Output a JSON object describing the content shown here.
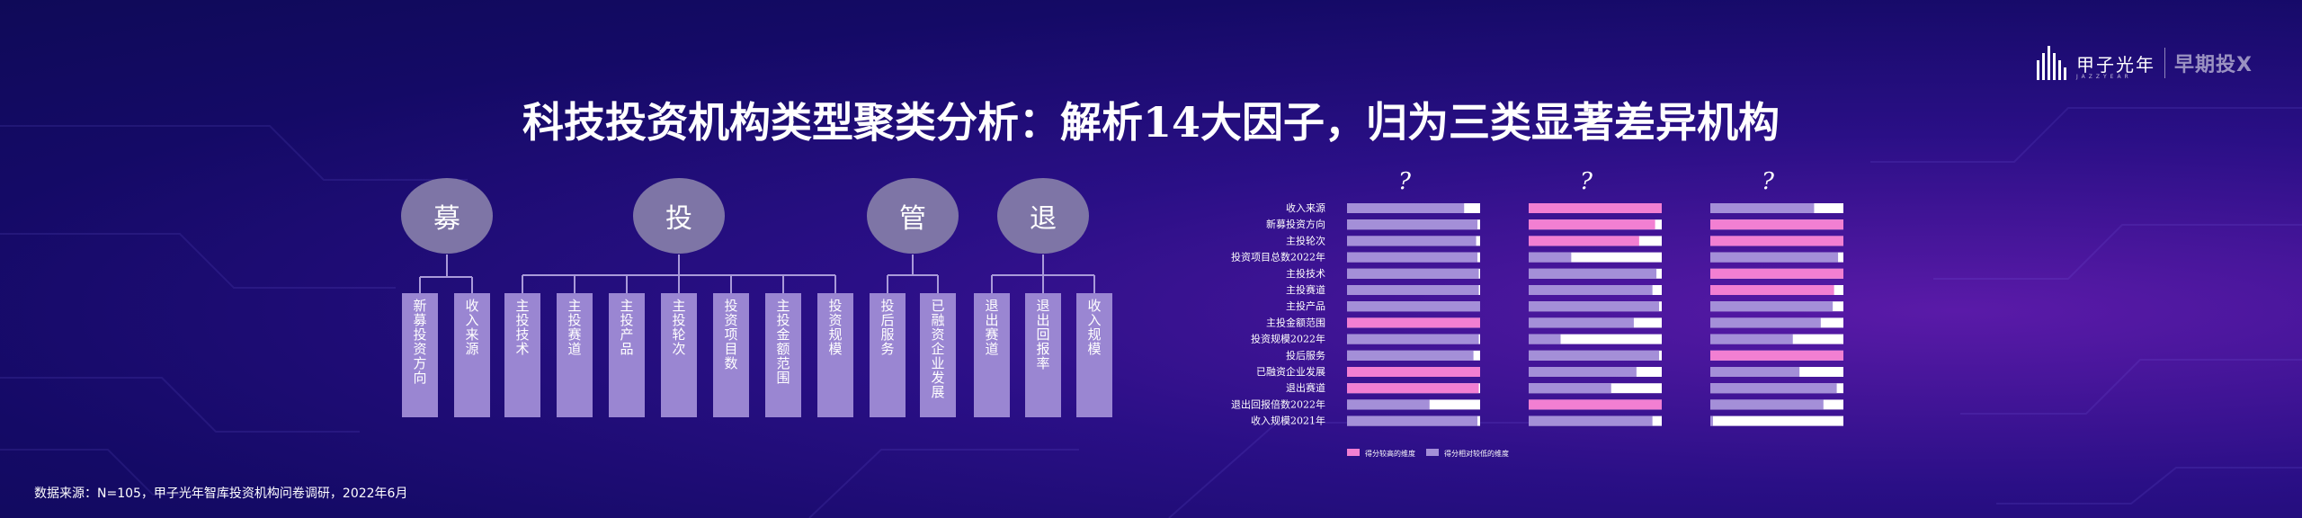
{
  "title": "科技投资机构类型聚类分析：解析14大因子，归为三类显著差异机构",
  "logo": {
    "brand": "甲子光年",
    "sub": "JAZZYEAR",
    "right": "早期投X"
  },
  "source": "数据来源：N=105，甲子光年智库投资机构问卷调研，2022年6月",
  "groups": [
    {
      "label": "募",
      "items": [
        "新募投资方向",
        "收入来源"
      ]
    },
    {
      "label": "投",
      "items": [
        "主投技术",
        "主投赛道",
        "主投产品",
        "主投轮次",
        "投资项目数",
        "主投金额范围",
        "投资规模"
      ]
    },
    {
      "label": "管",
      "items": [
        "投后服务",
        "已融资企业发展"
      ]
    },
    {
      "label": "退",
      "items": [
        "退出赛道",
        "退出回报率",
        "收入规模"
      ]
    }
  ],
  "colors": {
    "high": "#f27fd2",
    "low": "#a48fd8",
    "rest": "#ffffff"
  },
  "chart_data": {
    "type": "bar",
    "categories": [
      "收入来源",
      "新募投资方向",
      "主投轮次",
      "投资项目总数2022年",
      "主投技术",
      "主投赛道",
      "主投产品",
      "主投金额范围",
      "投资规模2022年",
      "投后服务",
      "已融资企业发展",
      "退出赛道",
      "退出回报倍数2022年",
      "收入规模2021年"
    ],
    "clusters": [
      {
        "label": "?",
        "kind": [
          "low",
          "low",
          "low",
          "low",
          "low",
          "low",
          "low",
          "high",
          "low",
          "low",
          "high",
          "high",
          "low",
          "low"
        ],
        "values": [
          0.88,
          0.98,
          0.97,
          0.98,
          0.99,
          0.99,
          1.0,
          1.0,
          0.99,
          0.95,
          1.0,
          0.99,
          0.62,
          0.98
        ]
      },
      {
        "label": "?",
        "kind": [
          "high",
          "high",
          "high",
          "low",
          "low",
          "low",
          "low",
          "low",
          "low",
          "low",
          "low",
          "low",
          "high",
          "low"
        ],
        "values": [
          1.0,
          0.95,
          0.83,
          0.32,
          0.96,
          0.93,
          0.98,
          0.79,
          0.24,
          0.98,
          0.81,
          0.62,
          1.0,
          0.93
        ]
      },
      {
        "label": "?",
        "kind": [
          "low",
          "high",
          "high",
          "low",
          "high",
          "high",
          "low",
          "low",
          "low",
          "high",
          "low",
          "low",
          "low",
          "low"
        ],
        "values": [
          0.78,
          1.0,
          1.0,
          0.96,
          1.0,
          0.93,
          0.92,
          0.83,
          0.62,
          1.0,
          0.67,
          0.95,
          0.85,
          0.02
        ]
      }
    ],
    "legend": [
      "得分较高的维度",
      "得分相对较低的维度"
    ]
  }
}
